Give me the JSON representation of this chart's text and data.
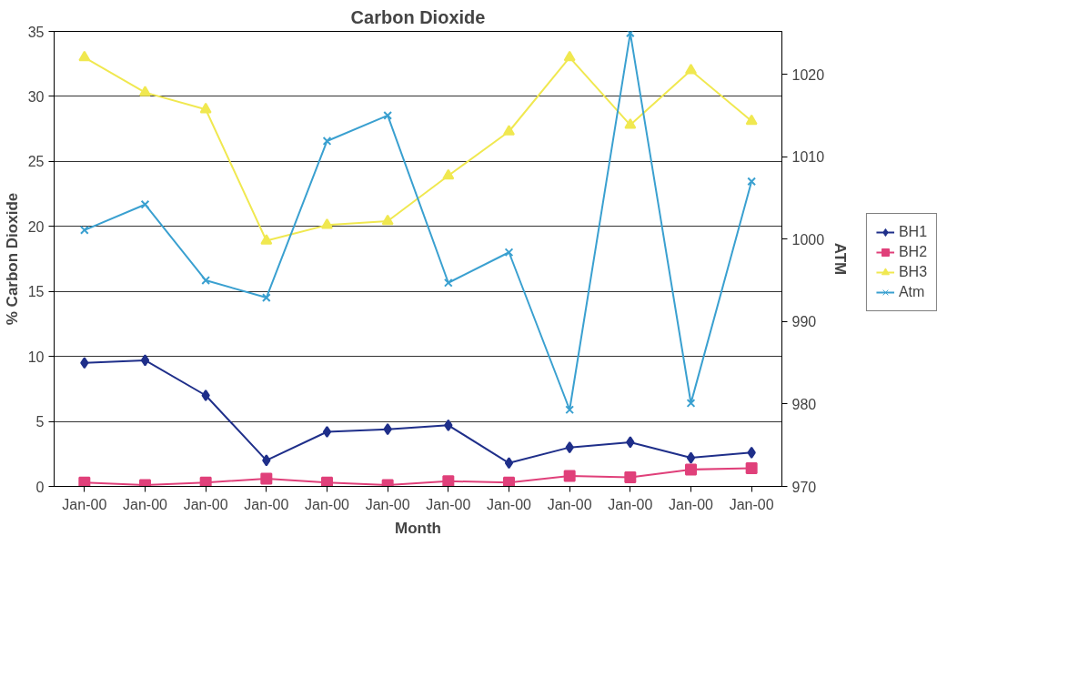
{
  "chart_data": {
    "type": "line",
    "title": "Carbon Dioxide",
    "xlabel": "Month",
    "ylabel": "% Carbon Dioxide",
    "y2label": "ATM",
    "categories": [
      "Jan-00",
      "Jan-00",
      "Jan-00",
      "Jan-00",
      "Jan-00",
      "Jan-00",
      "Jan-00",
      "Jan-00",
      "Jan-00",
      "Jan-00",
      "Jan-00",
      "Jan-00"
    ],
    "series": [
      {
        "name": "BH1",
        "color": "#1f2f8a",
        "marker": "diamond",
        "values": [
          9.5,
          9.7,
          7.0,
          2.0,
          4.2,
          4.4,
          4.7,
          1.8,
          3.0,
          3.4,
          2.2,
          2.6
        ]
      },
      {
        "name": "BH2",
        "color": "#e0407a",
        "marker": "square",
        "values": [
          0.3,
          0.1,
          0.3,
          0.6,
          0.3,
          0.1,
          0.4,
          0.3,
          0.8,
          0.7,
          1.3,
          1.4
        ]
      },
      {
        "name": "BH3",
        "color": "#f0e850",
        "marker": "triangle",
        "values": [
          33.0,
          30.3,
          29.0,
          18.9,
          20.1,
          20.4,
          23.9,
          27.3,
          33.0,
          27.8,
          32.0,
          28.1
        ]
      },
      {
        "name": "Atm",
        "color": "#3aa0d0",
        "marker": "cross",
        "axis": "y2",
        "values": [
          1001.1,
          1004.2,
          995.0,
          992.9,
          1011.9,
          1015.0,
          994.7,
          998.4,
          979.3,
          1025,
          980.1,
          1007.0
        ]
      }
    ],
    "ylim": [
      0,
      35
    ],
    "yticks": [
      0,
      5,
      10,
      15,
      20,
      25,
      30,
      35
    ],
    "y2lim": [
      970,
      1025.2
    ],
    "y2ticks": [
      970,
      980,
      990,
      1000,
      1010,
      1020
    ],
    "grid": "y",
    "legend": "right"
  }
}
